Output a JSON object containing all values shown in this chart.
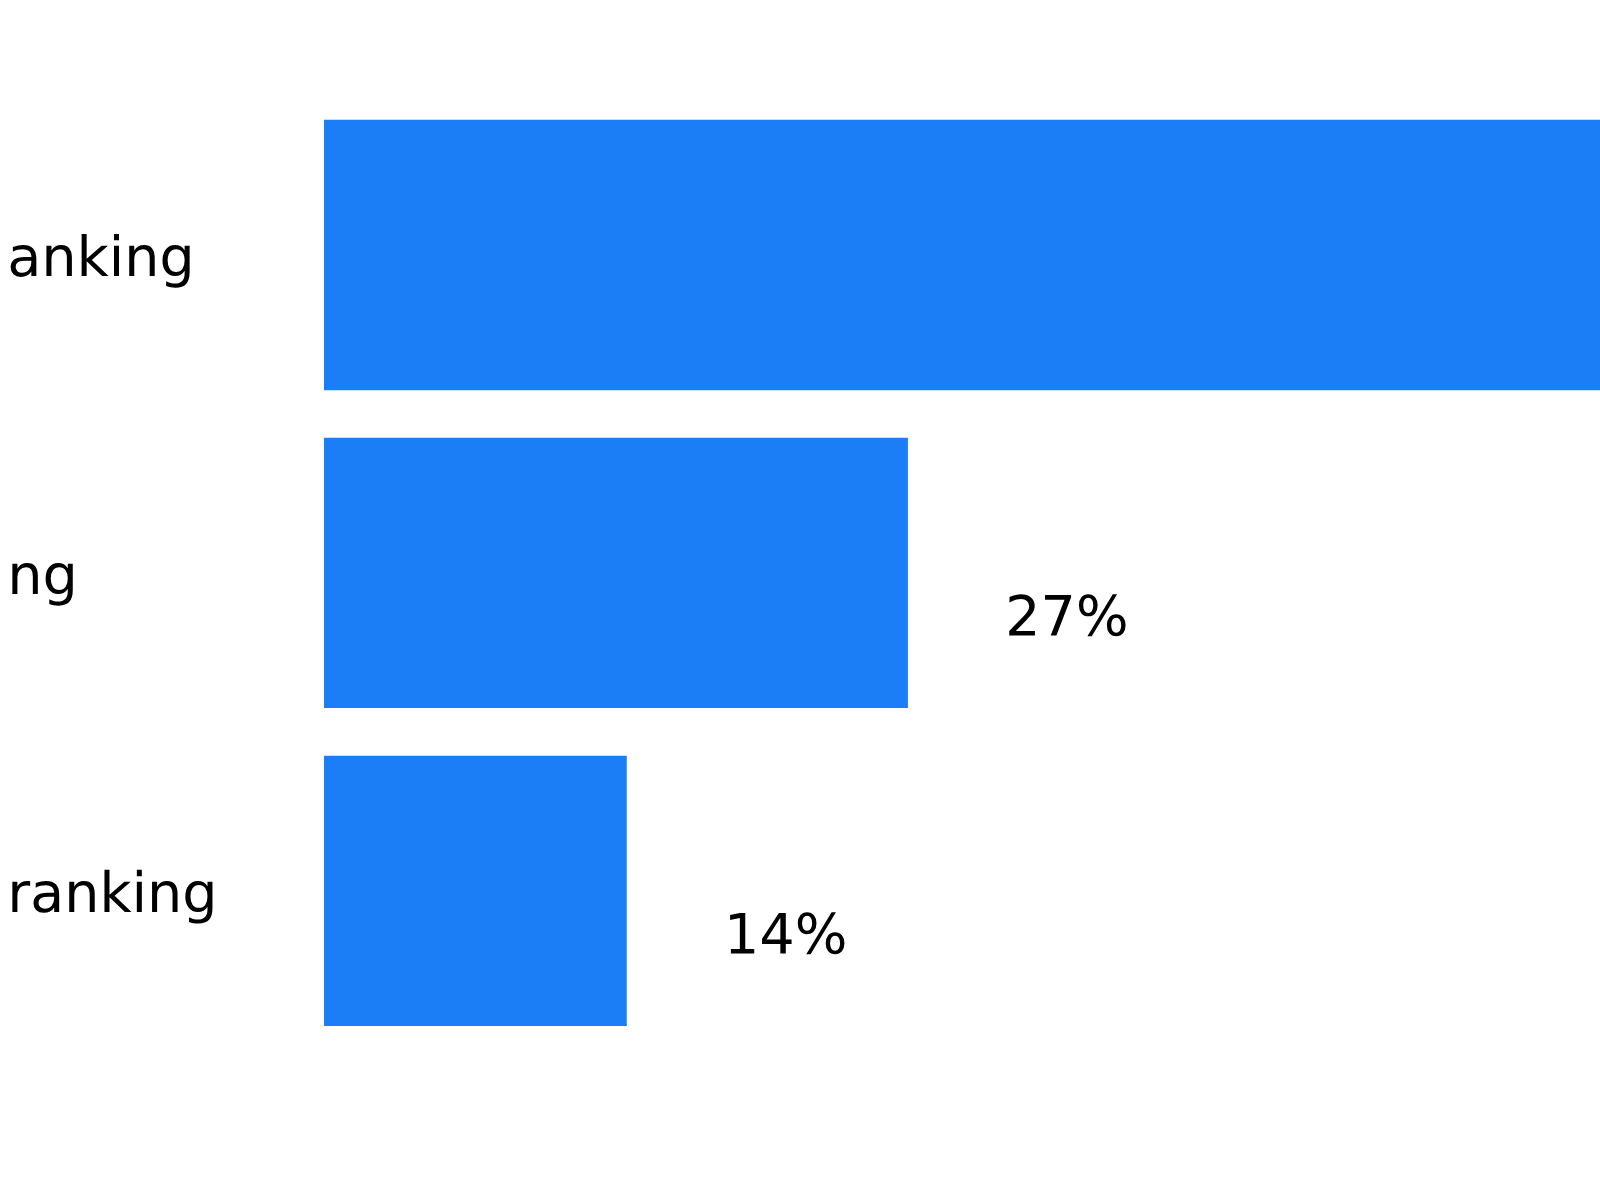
{
  "chart_data": {
    "type": "bar",
    "orientation": "horizontal",
    "categories": [
      "anking",
      "ng",
      "ranking"
    ],
    "values": [
      59,
      27,
      14
    ],
    "color": "#1c7ef7",
    "value_labels": [
      null,
      "27%",
      "14%"
    ]
  }
}
